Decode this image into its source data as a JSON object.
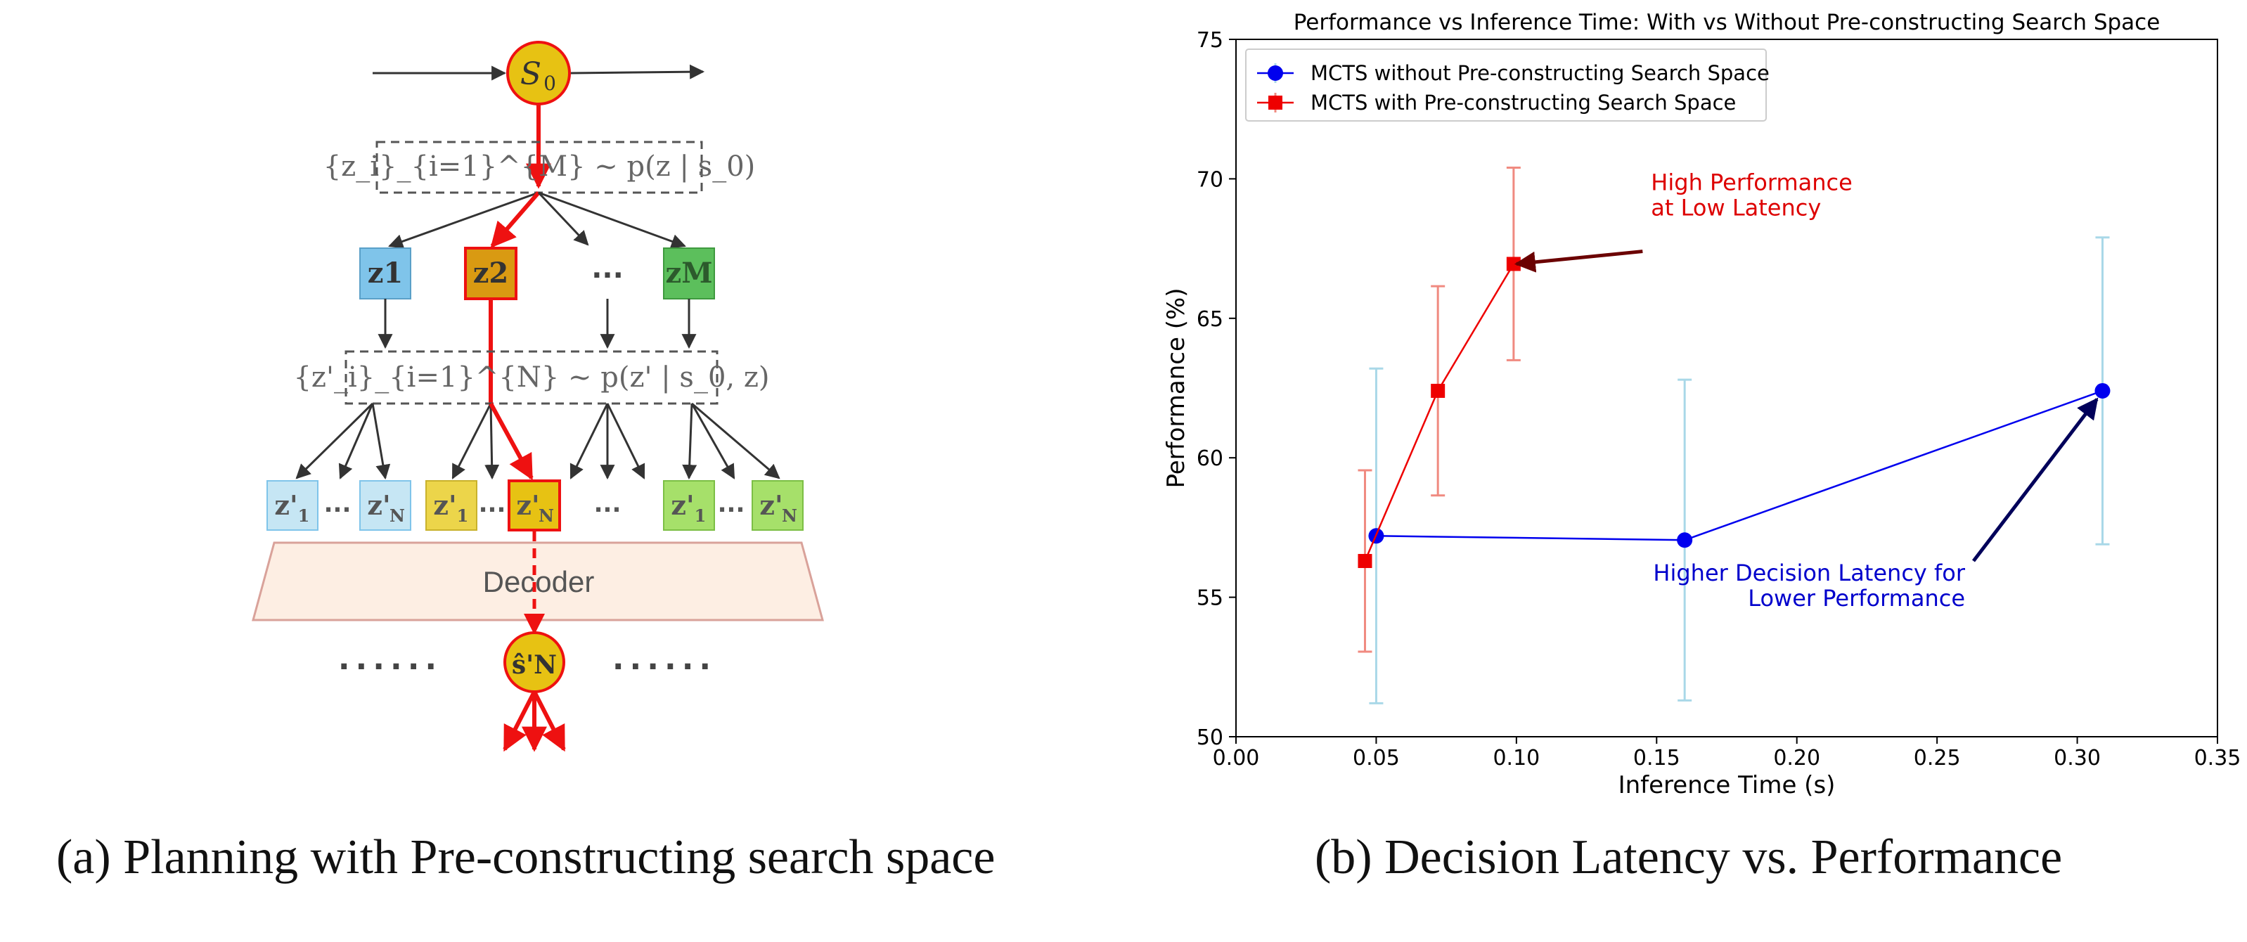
{
  "captions": {
    "a": "(a) Planning with Pre-constructing search space",
    "b": "(b) Decision Latency vs. Performance"
  },
  "diagram": {
    "root_label": "S",
    "root_sub": "0",
    "sampling_top": "{z_i}_{i=1}^{M} ~ p(z | s_0)",
    "sampling_mid": "{z'_i}_{i=1}^{N} ~ p(z' | s_0, z)",
    "level1_nodes": [
      "z1",
      "z2",
      "zM"
    ],
    "level1_ellipsis": "...",
    "level2_node_label": "z'",
    "level2_subs": [
      "1",
      "N",
      "1",
      "N",
      "1",
      "N"
    ],
    "level2_ellipsis": "...",
    "decoder_label": "Decoder",
    "output_label": "ŝ'N",
    "side_dots": "......",
    "colors": {
      "root_fill": "#e7c213",
      "highlight": "#ee1111",
      "z1_fill": "#7fc4ea",
      "z2_fill": "#d99a12",
      "zM_fill": "#5cbf5c",
      "light_blue": "#c6e6f4",
      "yellow": "#ecd54a",
      "light_green": "#a6e06a",
      "decoder_fill": "#fdeee3",
      "decoder_stroke": "#d9a29a"
    }
  },
  "chart_data": {
    "type": "line",
    "title": "Performance vs Inference Time: With vs Without Pre-constructing Search Space",
    "xlabel": "Inference Time (s)",
    "ylabel": "Performance (%)",
    "xlim": [
      0.0,
      0.35
    ],
    "ylim": [
      50,
      75
    ],
    "xticks": [
      0.0,
      0.05,
      0.1,
      0.15,
      0.2,
      0.25,
      0.3,
      0.35
    ],
    "xtick_labels": [
      "0.00",
      "0.05",
      "0.10",
      "0.15",
      "0.20",
      "0.25",
      "0.30",
      "0.35"
    ],
    "yticks": [
      50,
      55,
      60,
      65,
      70,
      75
    ],
    "ytick_labels": [
      "50",
      "55",
      "60",
      "65",
      "70",
      "75"
    ],
    "grid": false,
    "legend_position": "top-left",
    "series": [
      {
        "name": "MCTS without Pre-constructing Search Space",
        "color": "#0000ee",
        "errcolor": "#a9d8e8",
        "marker": "circle",
        "x": [
          0.05,
          0.16,
          0.309
        ],
        "y": [
          57.2,
          57.05,
          62.4
        ],
        "err": [
          6.0,
          5.75,
          5.5
        ]
      },
      {
        "name": "MCTS with Pre-constructing Search Space",
        "color": "#ee0000",
        "errcolor": "#f08a80",
        "marker": "square",
        "x": [
          0.046,
          0.072,
          0.099
        ],
        "y": [
          56.3,
          62.4,
          66.95
        ],
        "err": [
          3.25,
          3.75,
          3.45
        ]
      }
    ],
    "annotations": [
      {
        "text_lines": [
          "High Performance",
          "at Low Latency"
        ],
        "color": "#dd0000",
        "text_x": 0.148,
        "text_y": 69.6,
        "arrow_from": [
          0.145,
          67.4
        ],
        "arrow_to": [
          0.1,
          66.95
        ],
        "arrow_color": "#6b0000",
        "align": "start"
      },
      {
        "text_lines": [
          "Higher Decision Latency for",
          "Lower Performance"
        ],
        "color": "#0000cc",
        "text_x": 0.26,
        "text_y": 55.6,
        "arrow_from": [
          0.263,
          56.3
        ],
        "arrow_to": [
          0.307,
          62.1
        ],
        "arrow_color": "#00005a",
        "align": "end"
      }
    ]
  }
}
